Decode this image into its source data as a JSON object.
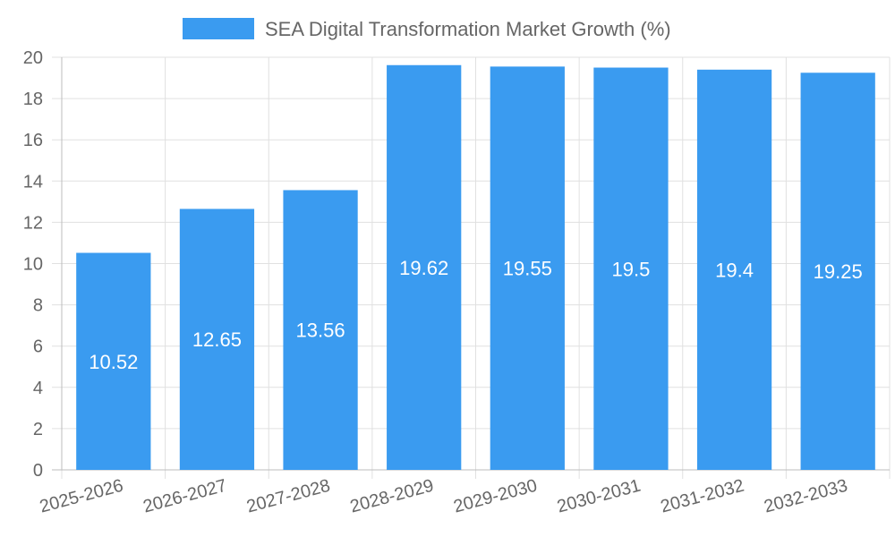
{
  "chart_data": {
    "type": "bar",
    "categories": [
      "2025-2026",
      "2026-2027",
      "2027-2028",
      "2028-2029",
      "2029-2030",
      "2030-2031",
      "2031-2032",
      "2032-2033"
    ],
    "series": [
      {
        "name": "SEA Digital Transformation Market Growth (%)",
        "values": [
          10.52,
          12.65,
          13.56,
          19.62,
          19.55,
          19.5,
          19.4,
          19.25
        ],
        "color": "#3a9bf0"
      }
    ],
    "ylim": [
      0,
      20
    ],
    "yticks": [
      0,
      2,
      4,
      6,
      8,
      10,
      12,
      14,
      16,
      18,
      20
    ],
    "grid": true,
    "legend_position": "top",
    "data_labels": true
  }
}
